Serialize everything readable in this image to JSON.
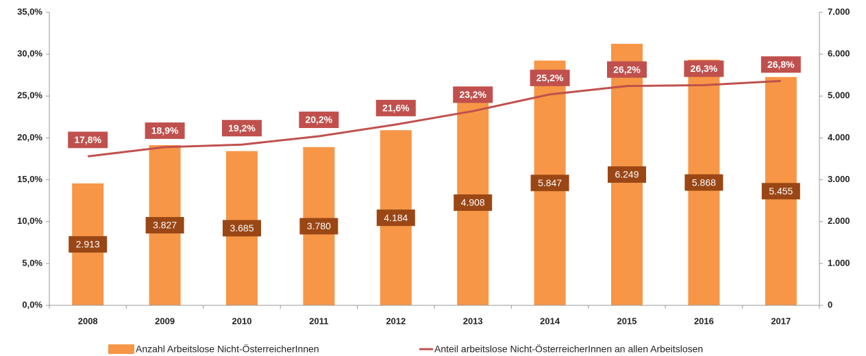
{
  "chart_data": {
    "type": "bar",
    "categories": [
      "2008",
      "2009",
      "2010",
      "2011",
      "2012",
      "2013",
      "2014",
      "2015",
      "2016",
      "2017"
    ],
    "series": [
      {
        "name": "Anzahl Arbeitslose Nicht-ÖsterreicherInnen",
        "type": "bar",
        "axis": "y2",
        "color": "#f79646",
        "values": [
          2913,
          3827,
          3685,
          3780,
          4184,
          4908,
          5847,
          6249,
          5868,
          5455
        ],
        "value_labels": [
          "2.913",
          "3.827",
          "3.685",
          "3.780",
          "4.184",
          "4.908",
          "5.847",
          "6.249",
          "5.868",
          "5.455"
        ]
      },
      {
        "name": "Anteil arbeitslose Nicht-ÖsterreicherInnen an allen Arbeitslosen",
        "type": "line",
        "color": "#c0504d",
        "values": [
          17.8,
          18.9,
          19.2,
          20.2,
          21.6,
          23.2,
          25.2,
          26.2,
          26.3,
          26.8
        ],
        "value_labels": [
          "17,8%",
          "18,9%",
          "19,2%",
          "20,2%",
          "21,6%",
          "23,2%",
          "25,2%",
          "26,2%",
          "26,3%",
          "26,8%"
        ]
      }
    ],
    "ylim": [
      0,
      35
    ],
    "yticks": [
      {
        "value": 0,
        "label": "0,0%"
      },
      {
        "value": 5,
        "label": "5,0%"
      },
      {
        "value": 10,
        "label": "10,0%"
      },
      {
        "value": 15,
        "label": "15,0%"
      },
      {
        "value": 20,
        "label": "20,0%"
      },
      {
        "value": 25,
        "label": "25,0%"
      },
      {
        "value": 30,
        "label": "30,0%"
      },
      {
        "value": 35,
        "label": "35,0%"
      }
    ],
    "y2lim": [
      0,
      7000
    ],
    "y2ticks": [
      0,
      {
        "value": 1000,
        "label": "1.000"
      },
      {
        "value": 2000,
        "label": "2.000"
      },
      {
        "value": 3000,
        "label": "3.000"
      },
      {
        "value": 4000,
        "label": "4.000"
      },
      {
        "value": 5000,
        "label": "5.000"
      },
      {
        "value": 6000,
        "label": "6.000"
      },
      {
        "value": 7000,
        "label": "7.000"
      }
    ]
  }
}
